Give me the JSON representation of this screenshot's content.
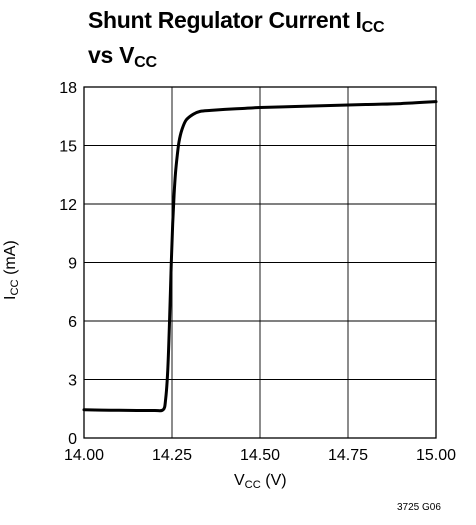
{
  "chart_data": {
    "type": "line",
    "title": {
      "main": "Shunt Regulator Current I",
      "main_sub": "CC",
      "line2": "vs V",
      "line2_sub": "CC"
    },
    "xlabel": {
      "main": "V",
      "sub": "CC",
      "unit": " (V)"
    },
    "ylabel": {
      "main": "I",
      "sub": "CC",
      "unit": " (mA)"
    },
    "xlim": [
      14.0,
      15.0
    ],
    "ylim": [
      0,
      18
    ],
    "x_ticks": [
      "14.00",
      "14.25",
      "14.50",
      "14.75",
      "15.00"
    ],
    "y_ticks": [
      "0",
      "3",
      "6",
      "9",
      "12",
      "15",
      "18"
    ],
    "grid": true,
    "series": [
      {
        "color": "#000000",
        "x": [
          14.0,
          14.05,
          14.1,
          14.15,
          14.2,
          14.225,
          14.232,
          14.238,
          14.243,
          14.248,
          14.252,
          14.256,
          14.26,
          14.265,
          14.27,
          14.278,
          14.29,
          14.31,
          14.33,
          14.36,
          14.4,
          14.45,
          14.5,
          14.6,
          14.7,
          14.8,
          14.9,
          15.0
        ],
        "y": [
          1.45,
          1.43,
          1.42,
          1.41,
          1.41,
          1.45,
          2.0,
          3.5,
          6.0,
          9.0,
          11.0,
          12.5,
          13.6,
          14.5,
          15.2,
          15.8,
          16.3,
          16.6,
          16.75,
          16.8,
          16.85,
          16.9,
          16.95,
          17.0,
          17.05,
          17.1,
          17.15,
          17.25
        ]
      }
    ]
  },
  "figure_code": "3725 G06"
}
